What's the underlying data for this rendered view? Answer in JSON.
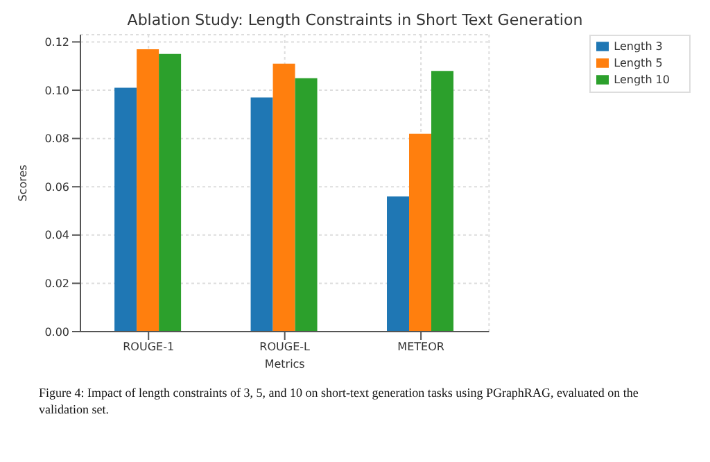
{
  "chart_data": {
    "type": "bar",
    "title": "Ablation Study: Length Constraints in Short Text Generation",
    "xlabel": "Metrics",
    "ylabel": "Scores",
    "categories": [
      "ROUGE-1",
      "ROUGE-L",
      "METEOR"
    ],
    "series": [
      {
        "name": "Length 3",
        "color": "#1f77b4",
        "values": [
          0.101,
          0.097,
          0.056
        ]
      },
      {
        "name": "Length 5",
        "color": "#ff7f0e",
        "values": [
          0.117,
          0.111,
          0.082
        ]
      },
      {
        "name": "Length 10",
        "color": "#2ca02c",
        "values": [
          0.115,
          0.105,
          0.108
        ]
      }
    ],
    "ylim": [
      0,
      0.123
    ],
    "yticks": [
      {
        "value": 0,
        "label": "0.00"
      },
      {
        "value": 0.02,
        "label": "0.02"
      },
      {
        "value": 0.04,
        "label": "0.04"
      },
      {
        "value": 0.06,
        "label": "0.06"
      },
      {
        "value": 0.08,
        "label": "0.08"
      },
      {
        "value": 0.1,
        "label": "0.10"
      },
      {
        "value": 0.12,
        "label": "0.12"
      }
    ],
    "grid": true,
    "legend": "top right",
    "annotations": [
      "Figure 4: Impact of length constraints of 3, 5, and 10 on short-text generation tasks using PGraphRAG, evaluated on the validation set."
    ]
  }
}
